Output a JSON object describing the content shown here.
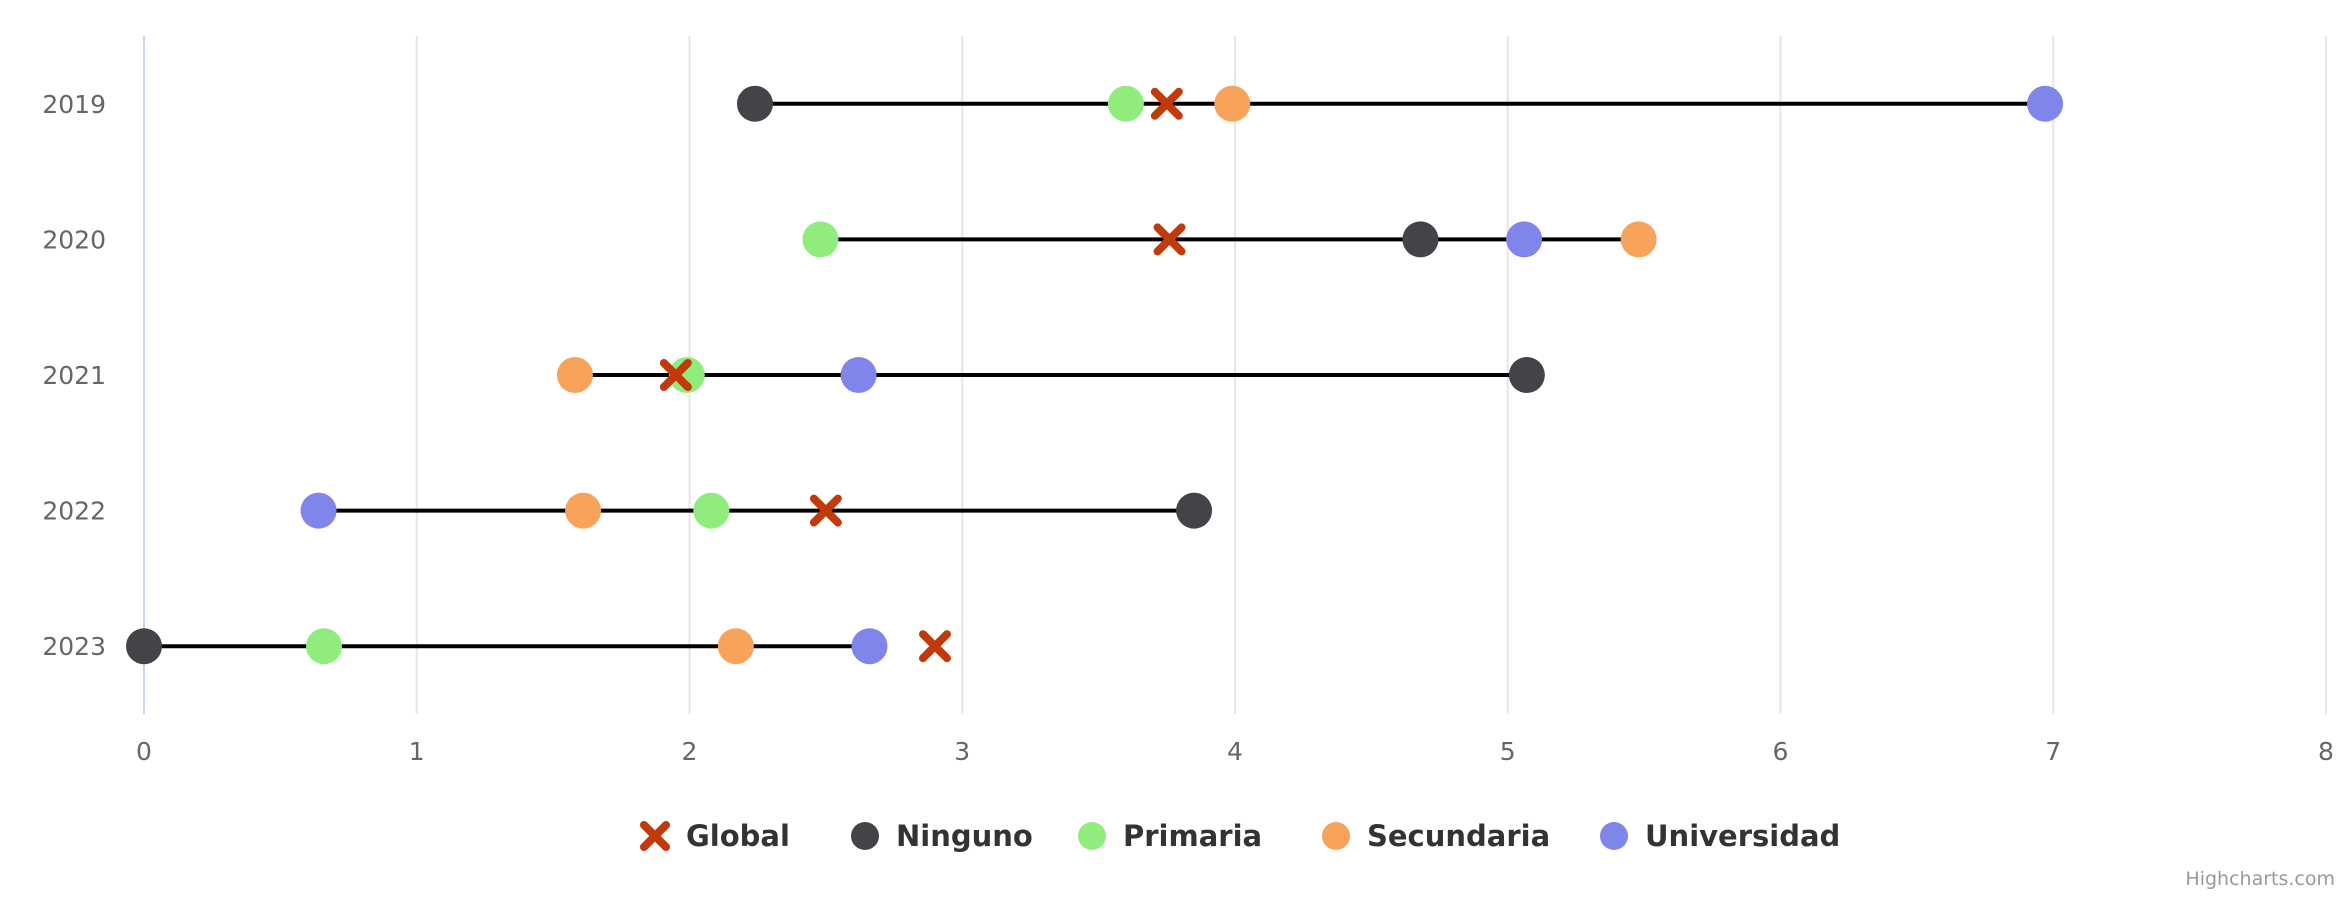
{
  "chart_data": {
    "type": "scatter",
    "orientation": "horizontal",
    "categories": [
      "2019",
      "2020",
      "2021",
      "2022",
      "2023"
    ],
    "xlim": [
      0,
      8
    ],
    "x_ticks": [
      "0",
      "1",
      "2",
      "3",
      "4",
      "5",
      "6",
      "7",
      "8"
    ],
    "grid": true,
    "legend_position": "bottom",
    "series": [
      {
        "name": "Global",
        "marker": "x",
        "color": "#c23a0b",
        "values": [
          3.75,
          3.76,
          1.95,
          2.5,
          2.9
        ]
      },
      {
        "name": "Ninguno",
        "marker": "circle",
        "color": "#434348",
        "values": [
          2.24,
          4.68,
          5.07,
          3.85,
          0.0
        ]
      },
      {
        "name": "Primaria",
        "marker": "circle",
        "color": "#90ed7d",
        "values": [
          3.6,
          2.48,
          1.99,
          2.08,
          0.66
        ]
      },
      {
        "name": "Secundaria",
        "marker": "circle",
        "color": "#f7a35c",
        "values": [
          3.99,
          5.48,
          1.58,
          1.61,
          2.17
        ]
      },
      {
        "name": "Universidad",
        "marker": "circle",
        "color": "#8085e9",
        "values": [
          6.97,
          5.06,
          2.62,
          0.64,
          2.66
        ]
      }
    ],
    "range_line_color": "#000000"
  },
  "credit": "Highcharts.com"
}
